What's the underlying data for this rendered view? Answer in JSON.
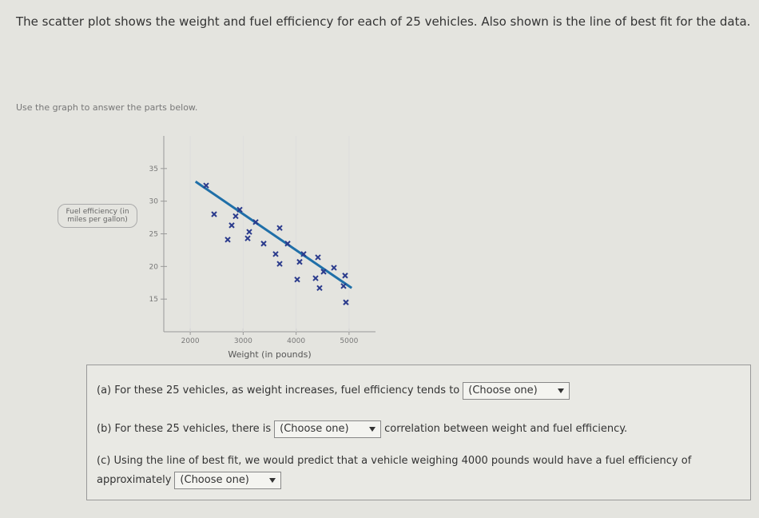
{
  "header": {
    "intro": "The scatter plot shows the weight and fuel efficiency for each of 25 vehicles. Also shown is the line of best fit for the data.",
    "instruction": "Use the graph to answer the parts below."
  },
  "chart_data": {
    "type": "scatter",
    "x_label": "Weight (in pounds)",
    "y_label": "Fuel efficiency (in miles per gallon)",
    "x": [
      2300,
      2451,
      2858,
      2934,
      3236,
      3689,
      2708,
      3085,
      3387,
      3840,
      3613,
      4066,
      4413,
      4715,
      4926,
      4368,
      4021,
      4443,
      4896,
      4941,
      3115,
      2783,
      4141,
      4519,
      3689
    ],
    "y": [
      32.4,
      28.0,
      27.7,
      28.7,
      26.8,
      25.9,
      24.1,
      24.3,
      23.5,
      23.5,
      21.9,
      20.7,
      21.4,
      19.8,
      18.6,
      18.2,
      18.0,
      16.7,
      17.0,
      14.5,
      25.3,
      26.3,
      21.9,
      19.2,
      20.4
    ],
    "best_fit": {
      "x": [
        2100,
        5050
      ],
      "y": [
        33,
        16.7
      ]
    },
    "xlim": [
      1500,
      5500
    ],
    "ylim": [
      10,
      40
    ],
    "xticks": [
      2000,
      3000,
      4000,
      5000
    ],
    "yticks": [
      15,
      20,
      25,
      30,
      35
    ],
    "color": "#2a3a8c",
    "line_color": "#1f6fa8"
  },
  "questions": [
    {
      "label": "(a)",
      "text": "For these 25 vehicles, as weight increases, fuel efficiency tends to",
      "select": "(Choose one)"
    },
    {
      "label": "(b)",
      "text": "For these 25 vehicles, there is",
      "select": "(Choose one)",
      "after": "correlation between weight and fuel efficiency."
    },
    {
      "label": "(c)",
      "text": "Using the line of best fit, we would predict that a vehicle weighing 4000 pounds would have a fuel efficiency of approximately",
      "select": "(Choose one)"
    }
  ]
}
